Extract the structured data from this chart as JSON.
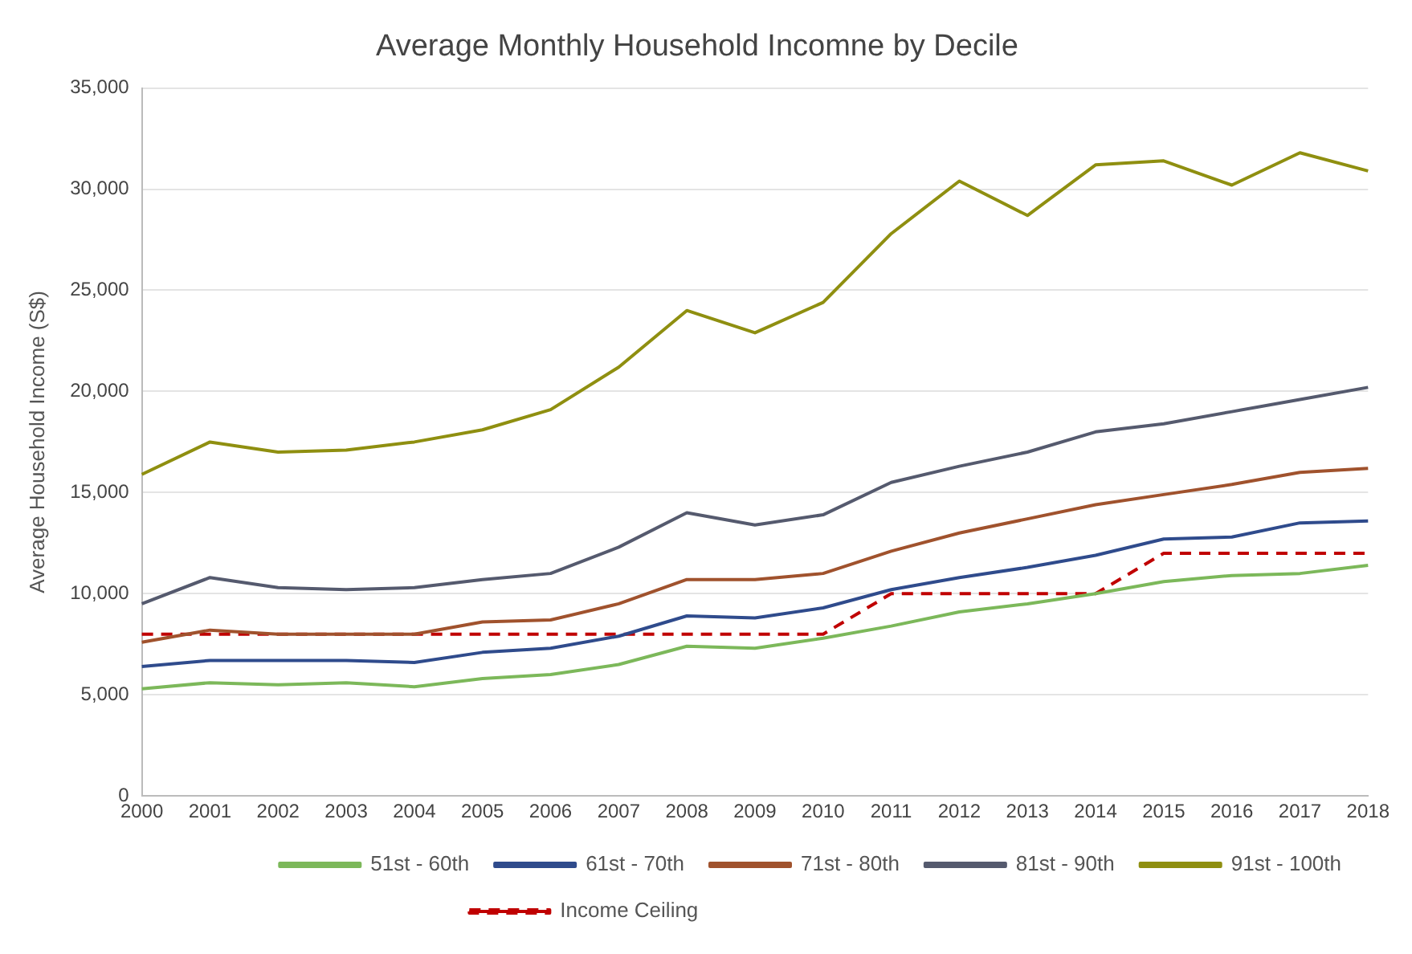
{
  "chart_data": {
    "type": "line",
    "title": "Average Monthly Household Incomne by Decile",
    "ylabel": "Average Household Income (S$)",
    "categories": [
      "2000",
      "2001",
      "2002",
      "2003",
      "2004",
      "2005",
      "2006",
      "2007",
      "2008",
      "2009",
      "2010",
      "2011",
      "2012",
      "2013",
      "2014",
      "2015",
      "2016",
      "2017",
      "2018"
    ],
    "series": [
      {
        "name": "51st - 60th",
        "color": "#7cb85a",
        "values": [
          5300,
          5600,
          5500,
          5600,
          5400,
          5800,
          6000,
          6500,
          7400,
          7300,
          7800,
          8400,
          9100,
          9500,
          10000,
          10600,
          10900,
          11000,
          11400
        ]
      },
      {
        "name": "61st - 70th",
        "color": "#2f4b8c",
        "values": [
          6400,
          6700,
          6700,
          6700,
          6600,
          7100,
          7300,
          7900,
          8900,
          8800,
          9300,
          10200,
          10800,
          11300,
          11900,
          12700,
          12800,
          13500,
          13600
        ]
      },
      {
        "name": "71st - 80th",
        "color": "#a0522d",
        "values": [
          7600,
          8200,
          8000,
          8000,
          8000,
          8600,
          8700,
          9500,
          10700,
          10700,
          11000,
          12100,
          13000,
          13700,
          14400,
          14900,
          15400,
          16000,
          16200
        ]
      },
      {
        "name": "81st - 90th",
        "color": "#555a6e",
        "values": [
          9500,
          10800,
          10300,
          10200,
          10300,
          10700,
          11000,
          12300,
          14000,
          13400,
          13900,
          15500,
          16300,
          17000,
          18000,
          18400,
          19000,
          19600,
          20200
        ]
      },
      {
        "name": "91st - 100th",
        "color": "#8f8f10",
        "values": [
          15900,
          17500,
          17000,
          17100,
          17500,
          18100,
          19100,
          21200,
          24000,
          22900,
          24400,
          27800,
          30400,
          28700,
          31200,
          31400,
          30200,
          31800,
          30900
        ]
      },
      {
        "name": "Income Ceiling",
        "color": "#c00000",
        "line_style": "dashed",
        "values": [
          8000,
          8000,
          8000,
          8000,
          8000,
          8000,
          8000,
          8000,
          8000,
          8000,
          8000,
          10000,
          10000,
          10000,
          10000,
          12000,
          12000,
          12000,
          12000
        ]
      }
    ],
    "ylim": [
      0,
      35000
    ],
    "yticks": [
      0,
      {
        "value": 5000,
        "label": "5,000"
      },
      {
        "value": 10000,
        "label": "10,000"
      },
      {
        "value": 15000,
        "label": "15,000"
      },
      {
        "value": 20000,
        "label": "20,000"
      },
      {
        "value": 25000,
        "label": "25,000"
      },
      {
        "value": 30000,
        "label": "30,000"
      },
      {
        "value": 35000,
        "label": "35,000"
      }
    ],
    "grid": "y",
    "legend": "bottom",
    "marker": "none",
    "line_style": "solid"
  }
}
